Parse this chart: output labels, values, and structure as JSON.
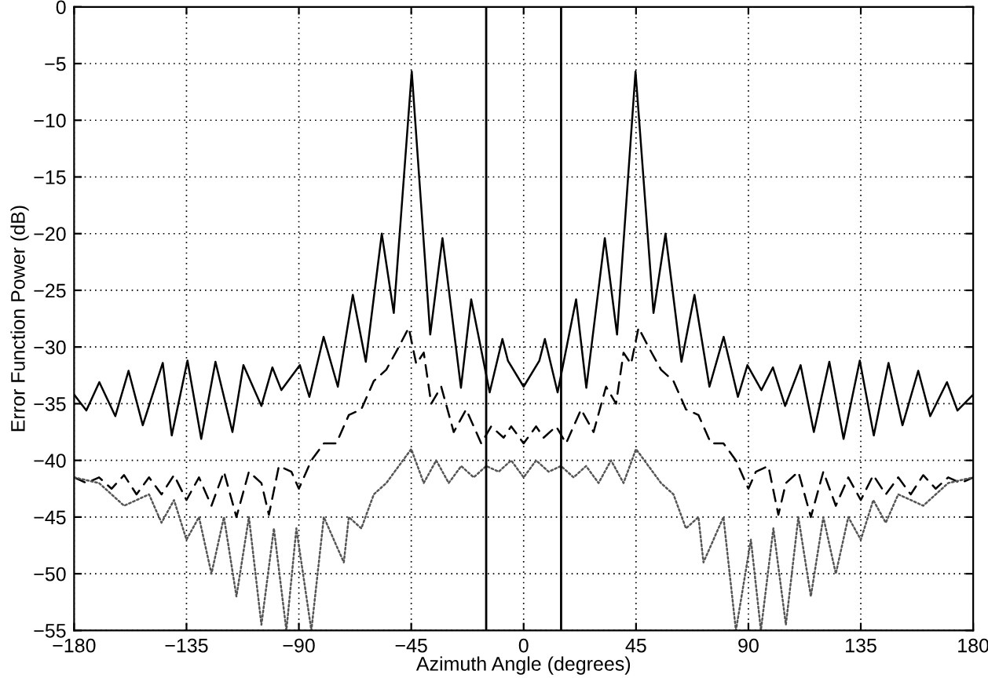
{
  "chart_data": {
    "type": "line",
    "xlabel": "Azimuth Angle (degrees)",
    "ylabel": "Error Function Power (dB)",
    "xlim": [
      -180,
      180
    ],
    "xticks": [
      {
        "value": -180,
        "label": "−180"
      },
      {
        "value": -135,
        "label": "−135"
      },
      {
        "value": -90,
        "label": "−90"
      },
      {
        "value": -45,
        "label": "−45"
      },
      0,
      45,
      90,
      135,
      180
    ],
    "ylim": [
      -55,
      0
    ],
    "yticks": [
      {
        "value": -55,
        "label": "−55"
      },
      {
        "value": -50,
        "label": "−50"
      },
      {
        "value": -45,
        "label": "−45"
      },
      {
        "value": -40,
        "label": "−40"
      },
      {
        "value": -35,
        "label": "−35"
      },
      {
        "value": -30,
        "label": "−30"
      },
      {
        "value": -25,
        "label": "−25"
      },
      {
        "value": -20,
        "label": "−20"
      },
      {
        "value": -15,
        "label": "−15"
      },
      {
        "value": -10,
        "label": "−10"
      },
      {
        "value": -5,
        "label": "−5"
      },
      0
    ],
    "grid": true,
    "legend": false,
    "ref_lines": [
      {
        "axis": "x",
        "value": -15,
        "color": "#000000",
        "line_style": "solid"
      },
      {
        "axis": "x",
        "value": 15,
        "color": "#000000",
        "line_style": "solid"
      }
    ],
    "series": [
      {
        "color": "#000000",
        "line_style": "solid",
        "x": [
          -180,
          -175.1,
          -169.9,
          -163.5,
          -158.2,
          -152.5,
          -144.5,
          -140.9,
          -134.6,
          -129.1,
          -123.4,
          -116.6,
          -112.2,
          -105,
          -100.6,
          -97,
          -89.6,
          -85.8,
          -80.1,
          -74.4,
          -68.4,
          -63.2,
          -56.8,
          -52,
          -44.8,
          -37.4,
          -32.5,
          -25.1,
          -21,
          -13.6,
          -8.5,
          -6.3,
          0,
          6.3,
          8.5,
          13.6,
          21,
          25.1,
          32.5,
          37.4,
          44.8,
          52,
          56.8,
          63.2,
          68.4,
          74.4,
          80.1,
          85.8,
          89.6,
          95.2,
          99.8,
          104.7,
          110.9,
          116.2,
          122.4,
          128.1,
          134.6,
          140.2,
          146.1,
          151.7,
          158,
          162.8,
          169.5,
          173.7,
          180
        ],
        "values": [
          -34.2,
          -35.6,
          -33.1,
          -36.1,
          -32.1,
          -36.9,
          -31.4,
          -37.8,
          -31.2,
          -38.1,
          -31.3,
          -37.5,
          -31.6,
          -35.2,
          -31.8,
          -33.8,
          -31.6,
          -34.4,
          -29.1,
          -33.5,
          -25.4,
          -31.3,
          -20,
          -27,
          -5.7,
          -28.9,
          -20.4,
          -33.6,
          -25.8,
          -34,
          -29.3,
          -31.2,
          -33.5,
          -31.2,
          -29.3,
          -34,
          -25.8,
          -33.6,
          -20.4,
          -28.9,
          -5.7,
          -27,
          -20,
          -31.3,
          -25.4,
          -33.5,
          -29.1,
          -34.4,
          -31.6,
          -33.8,
          -31.8,
          -35.2,
          -31.6,
          -37.5,
          -31.3,
          -38.1,
          -31.2,
          -37.8,
          -31.4,
          -36.9,
          -32.1,
          -36.1,
          -33.1,
          -35.6,
          -34.2
        ]
      },
      {
        "color": "#000000",
        "line_style": "dashed",
        "x": [
          -180,
          -175,
          -170,
          -165,
          -160,
          -155,
          -150,
          -145,
          -140,
          -135,
          -130,
          -125,
          -120,
          -115,
          -110,
          -105,
          -102,
          -98,
          -93,
          -90,
          -85,
          -80,
          -75,
          -70,
          -65,
          -60,
          -55,
          -50,
          -46,
          -43,
          -40,
          -37,
          -33,
          -28,
          -23,
          -17,
          -13,
          -8,
          -5,
          0,
          5,
          8,
          13,
          17,
          23,
          28,
          33,
          37,
          40,
          43,
          46,
          50,
          55,
          60,
          65,
          70,
          75,
          80,
          85,
          90,
          93,
          98,
          102,
          105,
          110,
          115,
          120,
          125,
          130,
          135,
          140,
          145,
          150,
          155,
          160,
          165,
          170,
          175,
          180
        ],
        "values": [
          -41.5,
          -42,
          -41.5,
          -42.5,
          -41.3,
          -43,
          -41.5,
          -43,
          -41.3,
          -43.5,
          -41.5,
          -44,
          -41,
          -45,
          -41,
          -42,
          -44.8,
          -40.5,
          -41,
          -42.5,
          -40,
          -38.5,
          -38.5,
          -36,
          -35.5,
          -33,
          -32,
          -30,
          -28.3,
          -31.5,
          -30.5,
          -35,
          -33.5,
          -37.5,
          -35.5,
          -38.5,
          -37,
          -38,
          -37,
          -38.5,
          -37,
          -38,
          -37,
          -38.5,
          -35.5,
          -37.5,
          -33.5,
          -35,
          -30.5,
          -31.5,
          -28.3,
          -30,
          -32,
          -33,
          -35.5,
          -36,
          -38.5,
          -38.5,
          -40,
          -42.5,
          -41,
          -40.5,
          -44.8,
          -42,
          -41,
          -45,
          -41,
          -44,
          -41.5,
          -43.5,
          -41.3,
          -43,
          -41.5,
          -43,
          -41.3,
          -42.5,
          -41.5,
          -42,
          -41.5
        ]
      },
      {
        "color": "#555555",
        "line_style": "dotted",
        "x": [
          -180,
          -170,
          -160,
          -150,
          -145,
          -140,
          -135,
          -130,
          -125,
          -120,
          -115,
          -110,
          -105,
          -100,
          -95,
          -91,
          -85,
          -80,
          -72,
          -70,
          -65,
          -60,
          -55,
          -50,
          -45,
          -40,
          -35,
          -30,
          -25,
          -20,
          -15,
          -10,
          -5,
          0,
          5,
          10,
          15,
          20,
          25,
          30,
          35,
          40,
          45,
          50,
          55,
          60,
          65,
          70,
          72,
          80,
          85,
          91,
          95,
          100,
          105,
          110,
          115,
          120,
          125,
          130,
          135,
          140,
          145,
          150,
          160,
          170,
          180
        ],
        "values": [
          -41.5,
          -42,
          -44,
          -43,
          -45.5,
          -43.5,
          -47,
          -45,
          -50,
          -45,
          -52,
          -45,
          -54.5,
          -46,
          -55,
          -46,
          -55,
          -45,
          -49,
          -45,
          -46,
          -43,
          -42,
          -40.5,
          -39,
          -42,
          -40,
          -42,
          -40.5,
          -41.5,
          -40.5,
          -41,
          -40,
          -41.5,
          -40,
          -41,
          -40.5,
          -41.5,
          -40.5,
          -42,
          -40,
          -42,
          -39,
          -40.5,
          -42,
          -43,
          -46,
          -45,
          -49,
          -45,
          -55,
          -47,
          -55,
          -46,
          -54.5,
          -45,
          -52,
          -45,
          -50,
          -45,
          -47,
          -43.5,
          -45.5,
          -43,
          -44,
          -42,
          -41.5
        ]
      }
    ]
  }
}
